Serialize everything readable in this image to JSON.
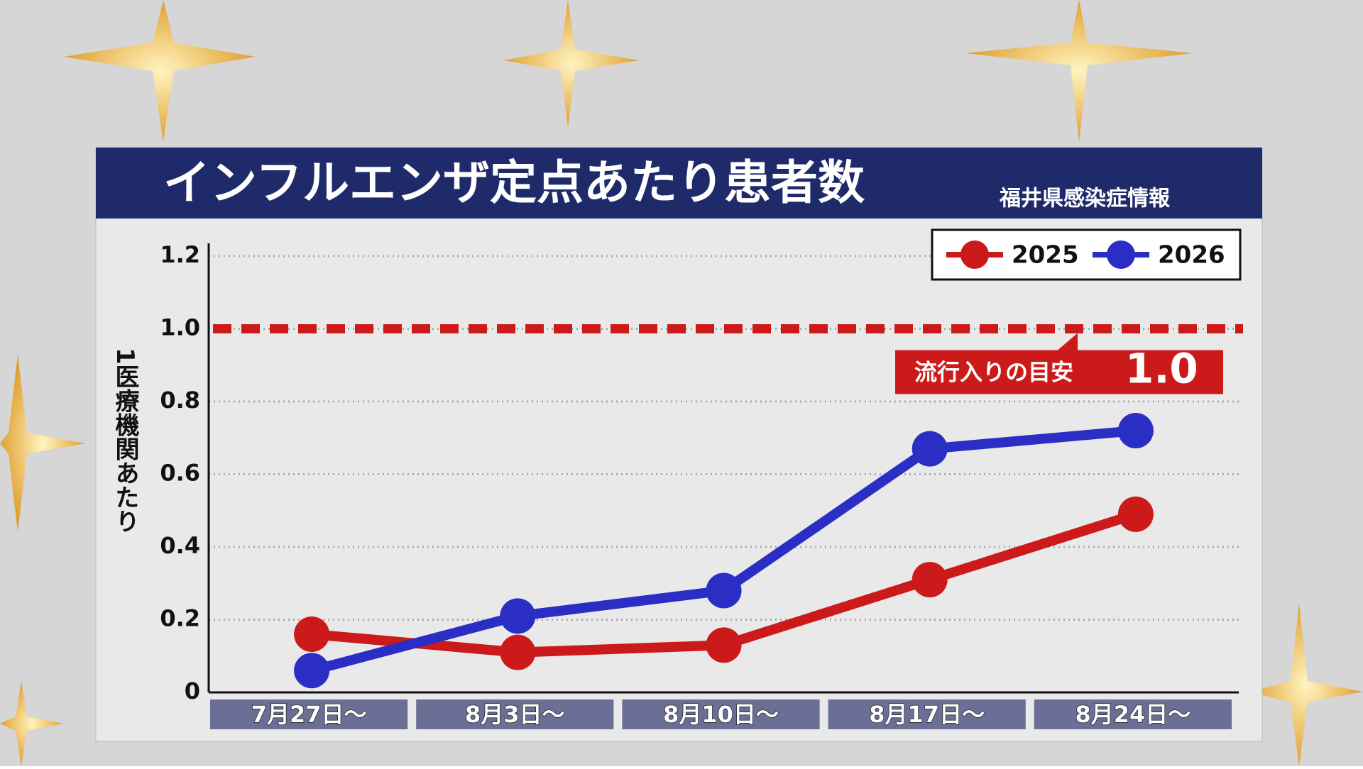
{
  "chart_data": {
    "type": "line",
    "title": "インフルエンザ定点あたり患者数",
    "subtitle": "福井県感染症情報",
    "y_label": "1医療機関あたり",
    "categories": [
      "7月27日～",
      "8月3日～",
      "8月10日～",
      "8月17日～",
      "8月24日～"
    ],
    "series": [
      {
        "name": "2025",
        "color": "#cc1a1a",
        "values": [
          0.16,
          0.11,
          0.13,
          0.31,
          0.49
        ]
      },
      {
        "name": "2026",
        "color": "#2a2ec4",
        "values": [
          0.06,
          0.21,
          0.28,
          0.67,
          0.72
        ]
      }
    ],
    "ylim": [
      0,
      1.2
    ],
    "yticks": [
      0,
      0.2,
      0.4,
      0.6,
      0.8,
      {
        "value": 1,
        "label": "1.0"
      },
      1.2
    ],
    "grid": true,
    "legend": "top-right",
    "reference_line": {
      "value": 1,
      "label": "1.0",
      "text": "流行入りの目安",
      "color": "#cc1a1a"
    }
  }
}
